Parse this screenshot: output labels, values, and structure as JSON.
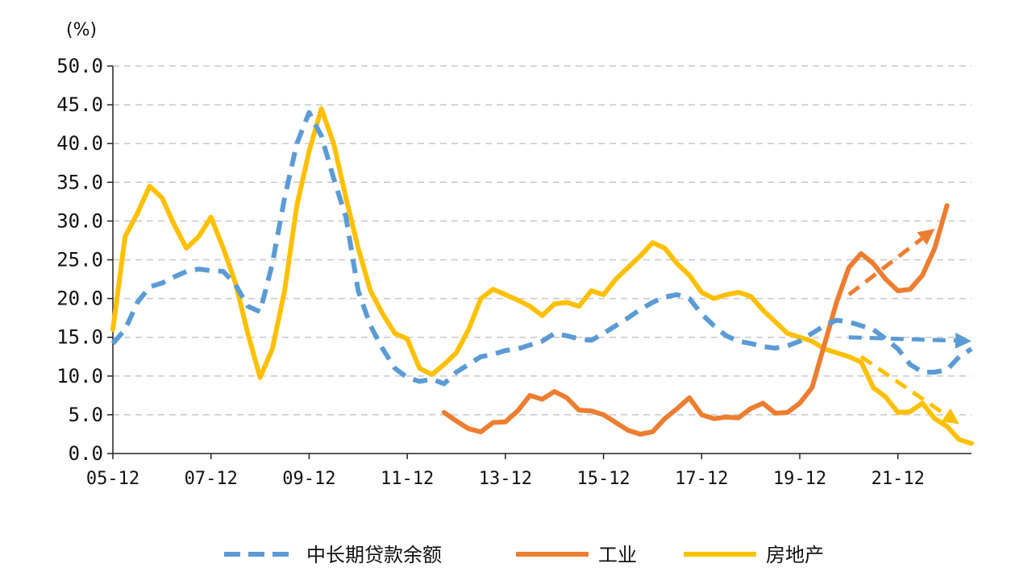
{
  "chart_data": {
    "type": "line",
    "y_unit": "(%)",
    "ylim": [
      0,
      50
    ],
    "y_ticks": [
      "0.0",
      "5.0",
      "10.0",
      "15.0",
      "20.0",
      "25.0",
      "30.0",
      "35.0",
      "40.0",
      "45.0",
      "50.0"
    ],
    "x_ticks": [
      "05-12",
      "07-12",
      "09-12",
      "11-12",
      "13-12",
      "15-12",
      "17-12",
      "19-12",
      "21-12"
    ],
    "x_tick_positions": [
      2005.92,
      2007.92,
      2009.92,
      2011.92,
      2013.92,
      2015.92,
      2017.92,
      2019.92,
      2021.92
    ],
    "xlim": [
      2005.92,
      2023.42
    ],
    "grid": "horizontal-dashed",
    "legend_position": "bottom",
    "series": [
      {
        "name": "中长期贷款余额",
        "style": "dashed",
        "color": "#5B9BD5",
        "points": [
          [
            2005.92,
            14.2
          ],
          [
            2006.17,
            16.0
          ],
          [
            2006.42,
            19.5
          ],
          [
            2006.67,
            21.5
          ],
          [
            2006.92,
            22.0
          ],
          [
            2007.17,
            22.8
          ],
          [
            2007.42,
            23.5
          ],
          [
            2007.67,
            23.8
          ],
          [
            2007.92,
            23.6
          ],
          [
            2008.17,
            23.5
          ],
          [
            2008.42,
            21.8
          ],
          [
            2008.67,
            19.0
          ],
          [
            2008.92,
            18.3
          ],
          [
            2009.17,
            24.5
          ],
          [
            2009.42,
            33.0
          ],
          [
            2009.67,
            40.0
          ],
          [
            2009.92,
            44.0
          ],
          [
            2010.17,
            41.0
          ],
          [
            2010.42,
            35.5
          ],
          [
            2010.67,
            30.5
          ],
          [
            2010.92,
            21.0
          ],
          [
            2011.17,
            16.5
          ],
          [
            2011.42,
            13.5
          ],
          [
            2011.67,
            11.0
          ],
          [
            2011.92,
            9.8
          ],
          [
            2012.17,
            9.3
          ],
          [
            2012.42,
            9.6
          ],
          [
            2012.67,
            9.0
          ],
          [
            2012.92,
            10.5
          ],
          [
            2013.17,
            11.5
          ],
          [
            2013.42,
            12.5
          ],
          [
            2013.67,
            12.8
          ],
          [
            2013.92,
            13.3
          ],
          [
            2014.17,
            13.5
          ],
          [
            2014.42,
            14.0
          ],
          [
            2014.67,
            14.5
          ],
          [
            2014.92,
            15.5
          ],
          [
            2015.17,
            15.2
          ],
          [
            2015.42,
            14.8
          ],
          [
            2015.67,
            14.6
          ],
          [
            2015.92,
            15.5
          ],
          [
            2016.17,
            16.5
          ],
          [
            2016.42,
            17.5
          ],
          [
            2016.67,
            18.6
          ],
          [
            2016.92,
            19.5
          ],
          [
            2017.17,
            20.2
          ],
          [
            2017.42,
            20.5
          ],
          [
            2017.67,
            20.0
          ],
          [
            2017.92,
            18.0
          ],
          [
            2018.17,
            16.5
          ],
          [
            2018.42,
            15.2
          ],
          [
            2018.67,
            14.5
          ],
          [
            2018.92,
            14.2
          ],
          [
            2019.17,
            13.8
          ],
          [
            2019.42,
            13.6
          ],
          [
            2019.67,
            13.9
          ],
          [
            2019.92,
            14.5
          ],
          [
            2020.17,
            15.5
          ],
          [
            2020.42,
            16.5
          ],
          [
            2020.67,
            17.2
          ],
          [
            2020.92,
            17.0
          ],
          [
            2021.17,
            16.5
          ],
          [
            2021.42,
            16.0
          ],
          [
            2021.67,
            14.8
          ],
          [
            2021.92,
            13.5
          ],
          [
            2022.17,
            11.5
          ],
          [
            2022.42,
            10.5
          ],
          [
            2022.67,
            10.5
          ],
          [
            2022.92,
            10.8
          ],
          [
            2023.17,
            12.5
          ],
          [
            2023.42,
            13.5
          ]
        ]
      },
      {
        "name": "工业",
        "style": "solid",
        "color": "#ED7D31",
        "points": [
          [
            2012.67,
            5.3
          ],
          [
            2012.92,
            4.2
          ],
          [
            2013.17,
            3.2
          ],
          [
            2013.42,
            2.8
          ],
          [
            2013.67,
            4.0
          ],
          [
            2013.92,
            4.1
          ],
          [
            2014.17,
            5.5
          ],
          [
            2014.42,
            7.5
          ],
          [
            2014.67,
            7.0
          ],
          [
            2014.92,
            8.0
          ],
          [
            2015.17,
            7.2
          ],
          [
            2015.42,
            5.6
          ],
          [
            2015.67,
            5.5
          ],
          [
            2015.92,
            5.0
          ],
          [
            2016.17,
            4.0
          ],
          [
            2016.42,
            3.0
          ],
          [
            2016.67,
            2.5
          ],
          [
            2016.92,
            2.8
          ],
          [
            2017.17,
            4.5
          ],
          [
            2017.42,
            5.8
          ],
          [
            2017.67,
            7.2
          ],
          [
            2017.92,
            5.0
          ],
          [
            2018.17,
            4.5
          ],
          [
            2018.42,
            4.7
          ],
          [
            2018.67,
            4.6
          ],
          [
            2018.92,
            5.8
          ],
          [
            2019.17,
            6.5
          ],
          [
            2019.42,
            5.2
          ],
          [
            2019.67,
            5.3
          ],
          [
            2019.92,
            6.5
          ],
          [
            2020.17,
            8.5
          ],
          [
            2020.42,
            14.0
          ],
          [
            2020.67,
            19.5
          ],
          [
            2020.92,
            24.0
          ],
          [
            2021.17,
            25.8
          ],
          [
            2021.42,
            24.5
          ],
          [
            2021.67,
            22.5
          ],
          [
            2021.92,
            21.0
          ],
          [
            2022.17,
            21.2
          ],
          [
            2022.42,
            23.0
          ],
          [
            2022.67,
            26.5
          ],
          [
            2022.92,
            32.0
          ]
        ]
      },
      {
        "name": "房地产",
        "style": "solid",
        "color": "#FFC000",
        "points": [
          [
            2005.92,
            16.0
          ],
          [
            2006.17,
            28.0
          ],
          [
            2006.42,
            31.0
          ],
          [
            2006.67,
            34.5
          ],
          [
            2006.92,
            33.0
          ],
          [
            2007.17,
            29.5
          ],
          [
            2007.42,
            26.5
          ],
          [
            2007.67,
            28.0
          ],
          [
            2007.92,
            30.5
          ],
          [
            2008.17,
            26.5
          ],
          [
            2008.42,
            22.0
          ],
          [
            2008.67,
            15.5
          ],
          [
            2008.92,
            9.8
          ],
          [
            2009.17,
            13.5
          ],
          [
            2009.42,
            21.0
          ],
          [
            2009.67,
            32.0
          ],
          [
            2009.92,
            39.0
          ],
          [
            2010.17,
            44.5
          ],
          [
            2010.42,
            40.0
          ],
          [
            2010.67,
            33.0
          ],
          [
            2010.92,
            26.5
          ],
          [
            2011.17,
            21.0
          ],
          [
            2011.42,
            18.0
          ],
          [
            2011.67,
            15.5
          ],
          [
            2011.92,
            14.8
          ],
          [
            2012.17,
            11.0
          ],
          [
            2012.42,
            10.2
          ],
          [
            2012.67,
            11.5
          ],
          [
            2012.92,
            13.0
          ],
          [
            2013.17,
            16.0
          ],
          [
            2013.42,
            20.0
          ],
          [
            2013.67,
            21.2
          ],
          [
            2013.92,
            20.5
          ],
          [
            2014.17,
            19.8
          ],
          [
            2014.42,
            19.0
          ],
          [
            2014.67,
            17.8
          ],
          [
            2014.92,
            19.3
          ],
          [
            2015.17,
            19.5
          ],
          [
            2015.42,
            19.0
          ],
          [
            2015.67,
            21.0
          ],
          [
            2015.92,
            20.5
          ],
          [
            2016.17,
            22.5
          ],
          [
            2016.42,
            24.0
          ],
          [
            2016.67,
            25.5
          ],
          [
            2016.92,
            27.2
          ],
          [
            2017.17,
            26.5
          ],
          [
            2017.42,
            24.5
          ],
          [
            2017.67,
            23.0
          ],
          [
            2017.92,
            20.8
          ],
          [
            2018.17,
            20.0
          ],
          [
            2018.42,
            20.5
          ],
          [
            2018.67,
            20.8
          ],
          [
            2018.92,
            20.3
          ],
          [
            2019.17,
            18.5
          ],
          [
            2019.42,
            17.0
          ],
          [
            2019.67,
            15.5
          ],
          [
            2019.92,
            15.0
          ],
          [
            2020.17,
            14.5
          ],
          [
            2020.42,
            13.5
          ],
          [
            2020.67,
            13.0
          ],
          [
            2020.92,
            12.5
          ],
          [
            2021.17,
            11.8
          ],
          [
            2021.42,
            8.5
          ],
          [
            2021.67,
            7.3
          ],
          [
            2021.92,
            5.3
          ],
          [
            2022.17,
            5.4
          ],
          [
            2022.42,
            6.5
          ],
          [
            2022.67,
            4.5
          ],
          [
            2022.92,
            3.5
          ],
          [
            2023.17,
            1.8
          ],
          [
            2023.42,
            1.3
          ]
        ]
      }
    ],
    "trend_arrows": [
      {
        "series": "中长期贷款余额",
        "color": "#5B9BD5",
        "from": [
          2020.92,
          15.0
        ],
        "to": [
          2023.42,
          14.5
        ]
      },
      {
        "series": "工业",
        "color": "#ED7D31",
        "from": [
          2020.92,
          20.5
        ],
        "to": [
          2022.67,
          29.0
        ]
      },
      {
        "series": "房地产",
        "color": "#FFC000",
        "from": [
          2021.17,
          12.5
        ],
        "to": [
          2023.17,
          3.8
        ]
      }
    ]
  }
}
